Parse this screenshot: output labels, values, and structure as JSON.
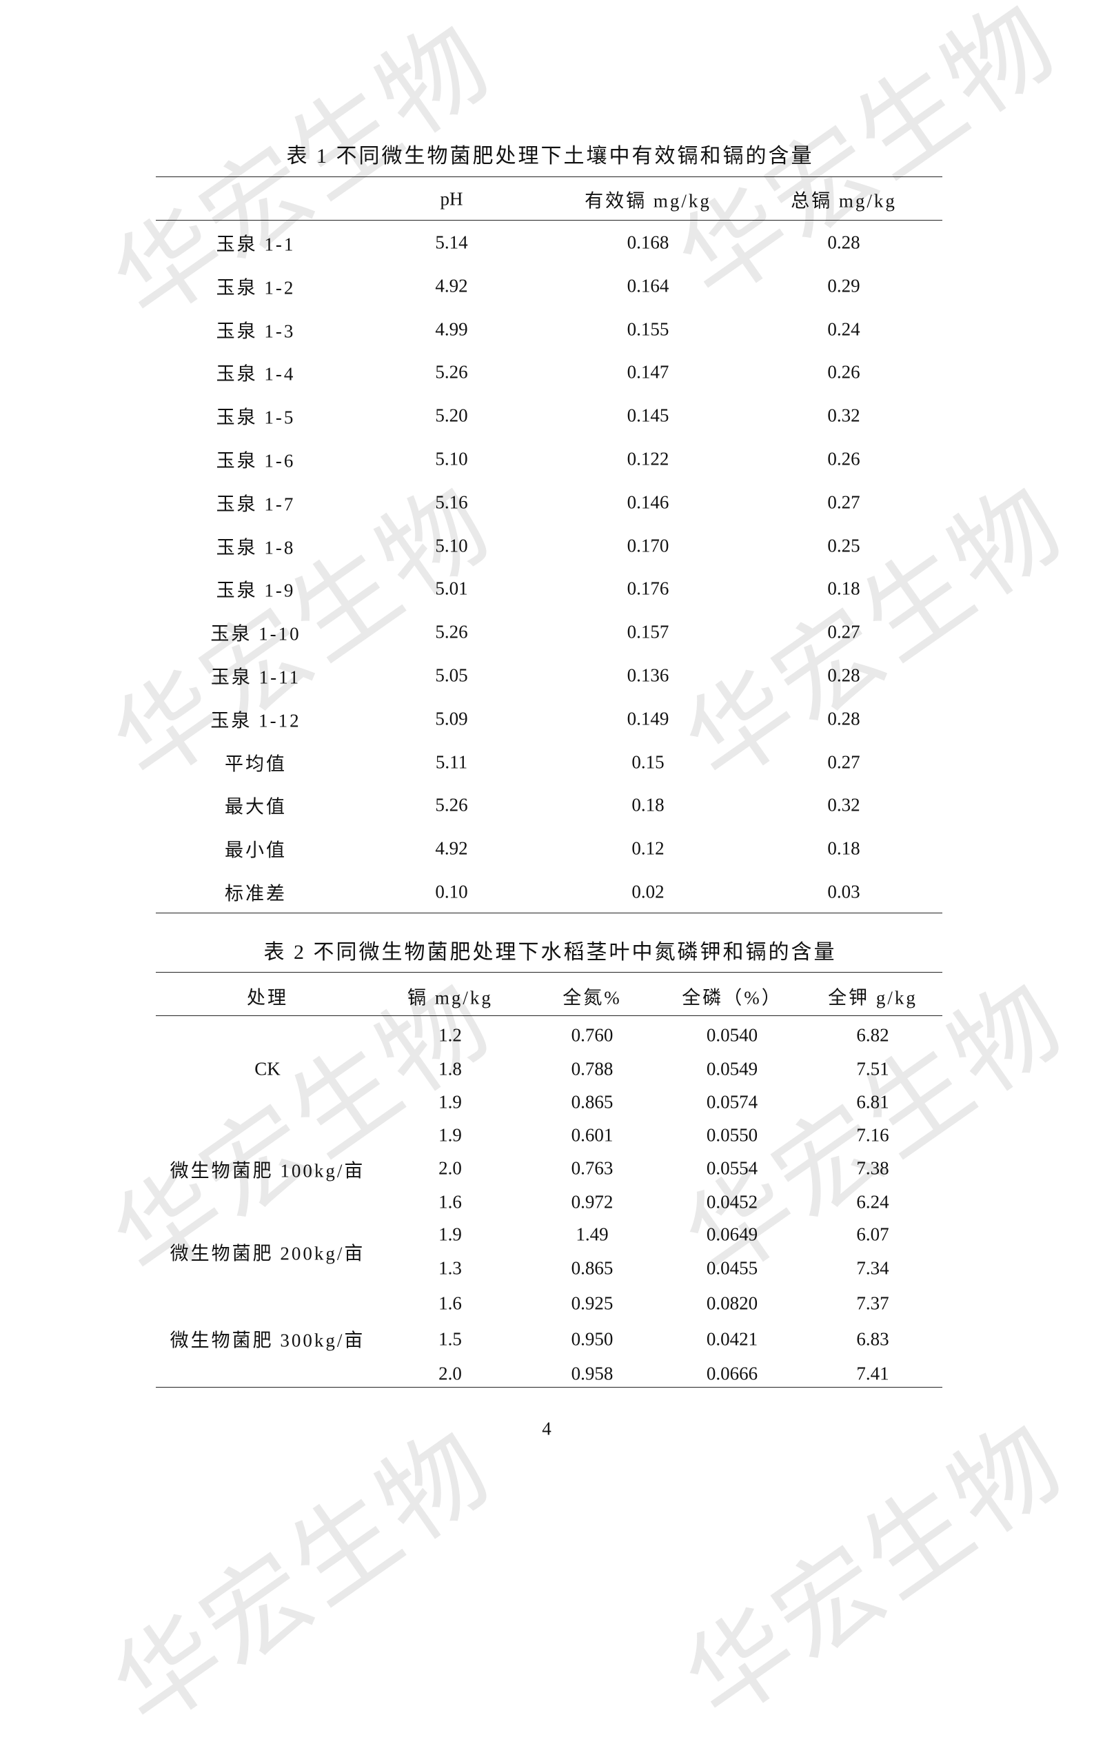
{
  "watermark": "华宏生物",
  "table1": {
    "title": "表 1 不同微生物菌肥处理下土壤中有效镉和镉的含量",
    "headers": [
      "",
      "pH",
      "有效镉 mg/kg",
      "总镉 mg/kg"
    ],
    "rows": [
      [
        "玉泉 1-1",
        "5.14",
        "0.168",
        "0.28"
      ],
      [
        "玉泉 1-2",
        "4.92",
        "0.164",
        "0.29"
      ],
      [
        "玉泉 1-3",
        "4.99",
        "0.155",
        "0.24"
      ],
      [
        "玉泉 1-4",
        "5.26",
        "0.147",
        "0.26"
      ],
      [
        "玉泉 1-5",
        "5.20",
        "0.145",
        "0.32"
      ],
      [
        "玉泉 1-6",
        "5.10",
        "0.122",
        "0.26"
      ],
      [
        "玉泉 1-7",
        "5.16",
        "0.146",
        "0.27"
      ],
      [
        "玉泉 1-8",
        "5.10",
        "0.170",
        "0.25"
      ],
      [
        "玉泉 1-9",
        "5.01",
        "0.176",
        "0.18"
      ],
      [
        "玉泉 1-10",
        "5.26",
        "0.157",
        "0.27"
      ],
      [
        "玉泉 1-11",
        "5.05",
        "0.136",
        "0.28"
      ],
      [
        "玉泉 1-12",
        "5.09",
        "0.149",
        "0.28"
      ],
      [
        "平均值",
        "5.11",
        "0.15",
        "0.27"
      ],
      [
        "最大值",
        "5.26",
        "0.18",
        "0.32"
      ],
      [
        "最小值",
        "4.92",
        "0.12",
        "0.18"
      ],
      [
        "标准差",
        "0.10",
        "0.02",
        "0.03"
      ]
    ]
  },
  "table2": {
    "title": "表 2 不同微生物菌肥处理下水稻茎叶中氮磷钾和镉的含量",
    "headers": [
      "处理",
      "镉 mg/kg",
      "全氮%",
      "全磷（%）",
      "全钾 g/kg"
    ],
    "groups": [
      {
        "label": "CK",
        "rows": [
          [
            "1.2",
            "0.760",
            "0.0540",
            "6.82"
          ],
          [
            "1.8",
            "0.788",
            "0.0549",
            "7.51"
          ],
          [
            "1.9",
            "0.865",
            "0.0574",
            "6.81"
          ]
        ]
      },
      {
        "label": "微生物菌肥 100kg/亩",
        "rows": [
          [
            "1.9",
            "0.601",
            "0.0550",
            "7.16"
          ],
          [
            "2.0",
            "0.763",
            "0.0554",
            "7.38"
          ],
          [
            "1.6",
            "0.972",
            "0.0452",
            "6.24"
          ]
        ]
      },
      {
        "label": "微生物菌肥 200kg/亩",
        "rows": [
          [
            "1.9",
            "1.49",
            "0.0649",
            "6.07"
          ],
          [
            "1.3",
            "0.865",
            "0.0455",
            "7.34"
          ]
        ]
      },
      {
        "label": "微生物菌肥 300kg/亩",
        "rows": [
          [
            "1.6",
            "0.925",
            "0.0820",
            "7.37"
          ],
          [
            "1.5",
            "0.950",
            "0.0421",
            "6.83"
          ],
          [
            "2.0",
            "0.958",
            "0.0666",
            "7.41"
          ]
        ]
      }
    ]
  },
  "page_number": "4"
}
